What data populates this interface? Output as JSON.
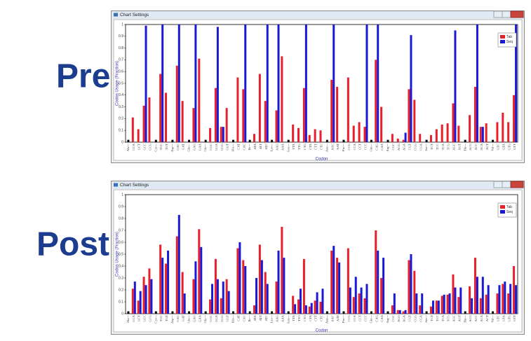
{
  "labels": [
    "Pre",
    "Post"
  ],
  "windows": [
    {
      "title": "Chart Settings"
    },
    {
      "title": "Chart Settings"
    }
  ],
  "chart_data": [
    {
      "type": "bar",
      "ylabel": "Codon Usage (Fraction)",
      "xlabel": "Codon",
      "categories": [
        "Ala---",
        "GCA",
        "GCT",
        "GCC",
        "GCG",
        "Cys---",
        "TGC",
        "TGT",
        "Asp---",
        "GAC",
        "GAT",
        "Glu---",
        "GAG",
        "GAA",
        "Gly---",
        "GGC",
        "GGA",
        "GGG",
        "GGT",
        "His---",
        "CAT",
        "CAC",
        "Ile---",
        "ATA",
        "ATT",
        "ATC",
        "Lys---",
        "AAG",
        "AAA",
        "Leu---",
        "TTA",
        "TTG",
        "CTG",
        "CTA",
        "CTT",
        "CTC",
        "Asn---",
        "AAC",
        "AAT",
        "Pro---",
        "CCG",
        "CCA",
        "CCT",
        "CCC",
        "Gln---",
        "CAG",
        "CAA",
        "Arg---",
        "CGC",
        "AGG",
        "AGA",
        "CGT",
        "CGG",
        "CGA",
        "Ser---",
        "TCT",
        "TCC",
        "TCA",
        "TCG",
        "AGC",
        "AGT",
        "Thr---",
        "ACG",
        "ACC",
        "ACA",
        "ACT",
        "Val---",
        "GTC",
        "GTA",
        "GTG",
        "GTT"
      ],
      "series": [
        {
          "name": "Tab",
          "color": "#e8202a",
          "values": [
            null,
            0.21,
            0.11,
            0.31,
            0.38,
            null,
            0.58,
            0.42,
            null,
            0.65,
            0.35,
            null,
            0.29,
            0.71,
            null,
            0.12,
            0.46,
            0.13,
            0.29,
            null,
            0.55,
            0.45,
            null,
            0.07,
            0.58,
            0.35,
            null,
            0.27,
            0.73,
            null,
            0.15,
            0.12,
            0.46,
            0.06,
            0.11,
            0.1,
            null,
            0.53,
            0.47,
            null,
            0.55,
            0.14,
            0.17,
            0.13,
            null,
            0.7,
            0.3,
            null,
            0.07,
            0.03,
            0.02,
            0.45,
            0.36,
            0.07,
            null,
            0.06,
            0.11,
            0.15,
            0.16,
            0.33,
            0.14,
            null,
            0.23,
            0.47,
            0.13,
            0.16,
            null,
            0.17,
            0.25,
            0.17,
            0.4
          ]
        },
        {
          "name": "Seq",
          "color": "#1a1ad6",
          "values": [
            null,
            0,
            0,
            0.99,
            0,
            null,
            1,
            0,
            null,
            1,
            0,
            null,
            1,
            0,
            null,
            0,
            0.98,
            0.13,
            0,
            null,
            0,
            1,
            null,
            0,
            0,
            1,
            null,
            1,
            0,
            null,
            0,
            0,
            1,
            0,
            0,
            0,
            null,
            1,
            0,
            null,
            0,
            0,
            0,
            1,
            null,
            1,
            0,
            null,
            0,
            0,
            0.08,
            0.91,
            0,
            0,
            null,
            0,
            0,
            0,
            0,
            0.95,
            0,
            null,
            0,
            1,
            0.13,
            0,
            null,
            0,
            0,
            0,
            1
          ]
        },
        {
          "color": "#000000",
          "values": [
            0.02,
            null,
            null,
            null,
            null,
            0.02,
            null,
            null,
            0.02,
            null,
            null,
            0.02,
            null,
            null,
            0.02,
            null,
            null,
            null,
            null,
            0.02,
            null,
            null,
            0.02,
            null,
            null,
            null,
            0.02,
            null,
            null,
            0.02,
            null,
            null,
            null,
            null,
            null,
            null,
            0.02,
            null,
            null,
            0.02,
            null,
            null,
            null,
            null,
            0.02,
            null,
            null,
            0.02,
            null,
            null,
            null,
            null,
            null,
            null,
            0.02,
            null,
            null,
            null,
            null,
            null,
            null,
            0.02,
            null,
            null,
            null,
            null,
            0.02,
            null,
            null,
            null,
            null
          ]
        }
      ],
      "ylim": [
        0,
        1
      ],
      "yticks": [
        0,
        0.1,
        0.2,
        0.3,
        0.4,
        0.5,
        0.6,
        0.7,
        0.8,
        0.9,
        1
      ],
      "legend": "upper right"
    },
    {
      "type": "bar",
      "ylabel": "Codon Usage (Fraction)",
      "xlabel": "Codon",
      "categories": [
        "Ala---",
        "GCA",
        "GCT",
        "GCC",
        "GCG",
        "Cys---",
        "TGC",
        "TGT",
        "Asp---",
        "GAC",
        "GAT",
        "Glu---",
        "GAG",
        "GAA",
        "Gly---",
        "GGC",
        "GGA",
        "GGG",
        "GGT",
        "His---",
        "CAT",
        "CAC",
        "Ile---",
        "ATA",
        "ATT",
        "ATC",
        "Lys---",
        "AAG",
        "AAA",
        "Leu---",
        "TTA",
        "TTG",
        "CTG",
        "CTA",
        "CTT",
        "CTC",
        "Asn---",
        "AAC",
        "AAT",
        "Pro---",
        "CCG",
        "CCA",
        "CCT",
        "CCC",
        "Gln---",
        "CAG",
        "CAA",
        "Arg---",
        "CGC",
        "AGG",
        "AGA",
        "CGT",
        "CGG",
        "CGA",
        "Ser---",
        "TCT",
        "TCC",
        "TCA",
        "TCG",
        "AGC",
        "AGT",
        "Thr---",
        "ACG",
        "ACC",
        "ACA",
        "ACT",
        "Val---",
        "GTC",
        "GTA",
        "GTG",
        "GTT"
      ],
      "series": [
        {
          "name": "Tab",
          "color": "#e8202a",
          "values": [
            null,
            0.21,
            0.11,
            0.31,
            0.38,
            null,
            0.58,
            0.42,
            null,
            0.65,
            0.35,
            null,
            0.29,
            0.71,
            null,
            0.12,
            0.46,
            0.13,
            0.29,
            null,
            0.55,
            0.45,
            null,
            0.07,
            0.58,
            0.35,
            null,
            0.27,
            0.73,
            null,
            0.15,
            0.12,
            0.46,
            0.06,
            0.11,
            0.1,
            null,
            0.53,
            0.47,
            null,
            0.55,
            0.14,
            0.17,
            0.13,
            null,
            0.7,
            0.3,
            null,
            0.07,
            0.03,
            0.02,
            0.45,
            0.36,
            0.07,
            null,
            0.06,
            0.11,
            0.15,
            0.16,
            0.33,
            0.14,
            null,
            0.23,
            0.47,
            0.13,
            0.16,
            null,
            0.17,
            0.25,
            0.17,
            0.4
          ]
        },
        {
          "name": "Seq",
          "color": "#1a1ad6",
          "values": [
            null,
            0.27,
            0.19,
            0.24,
            0.29,
            null,
            0.47,
            0.53,
            null,
            0.83,
            0.17,
            null,
            0.44,
            0.56,
            null,
            0.25,
            0.29,
            0.27,
            0.19,
            null,
            0.6,
            0.4,
            null,
            0.3,
            0.45,
            0.25,
            null,
            0.53,
            0.47,
            null,
            0.08,
            0.21,
            0.07,
            0.09,
            0.18,
            0.21,
            null,
            0.57,
            0.43,
            null,
            0.22,
            0.31,
            0.22,
            0.25,
            null,
            0.53,
            0.47,
            null,
            0.17,
            0.03,
            0.03,
            0.5,
            0.17,
            0.17,
            null,
            0.11,
            0.11,
            0.16,
            0.17,
            0.22,
            0.22,
            null,
            0.13,
            0.31,
            0.31,
            0.24,
            null,
            0.24,
            0.27,
            0.25,
            0.24
          ]
        },
        {
          "color": "#000000",
          "values": [
            0.02,
            null,
            null,
            null,
            null,
            0.02,
            null,
            null,
            0.02,
            null,
            null,
            0.02,
            null,
            null,
            0.02,
            null,
            null,
            null,
            null,
            0.02,
            null,
            null,
            0.02,
            null,
            null,
            null,
            0.02,
            null,
            null,
            0.02,
            null,
            null,
            null,
            null,
            null,
            null,
            0.02,
            null,
            null,
            0.02,
            null,
            null,
            null,
            null,
            0.02,
            null,
            null,
            0.02,
            null,
            null,
            null,
            null,
            null,
            null,
            0.02,
            null,
            null,
            null,
            null,
            null,
            null,
            0.02,
            null,
            null,
            null,
            null,
            0.02,
            null,
            null,
            null,
            null
          ]
        }
      ],
      "ylim": [
        0,
        1
      ],
      "yticks": [
        0,
        0.1,
        0.2,
        0.3,
        0.4,
        0.5,
        0.6,
        0.7,
        0.8,
        0.9,
        1
      ],
      "legend": "upper right"
    }
  ]
}
